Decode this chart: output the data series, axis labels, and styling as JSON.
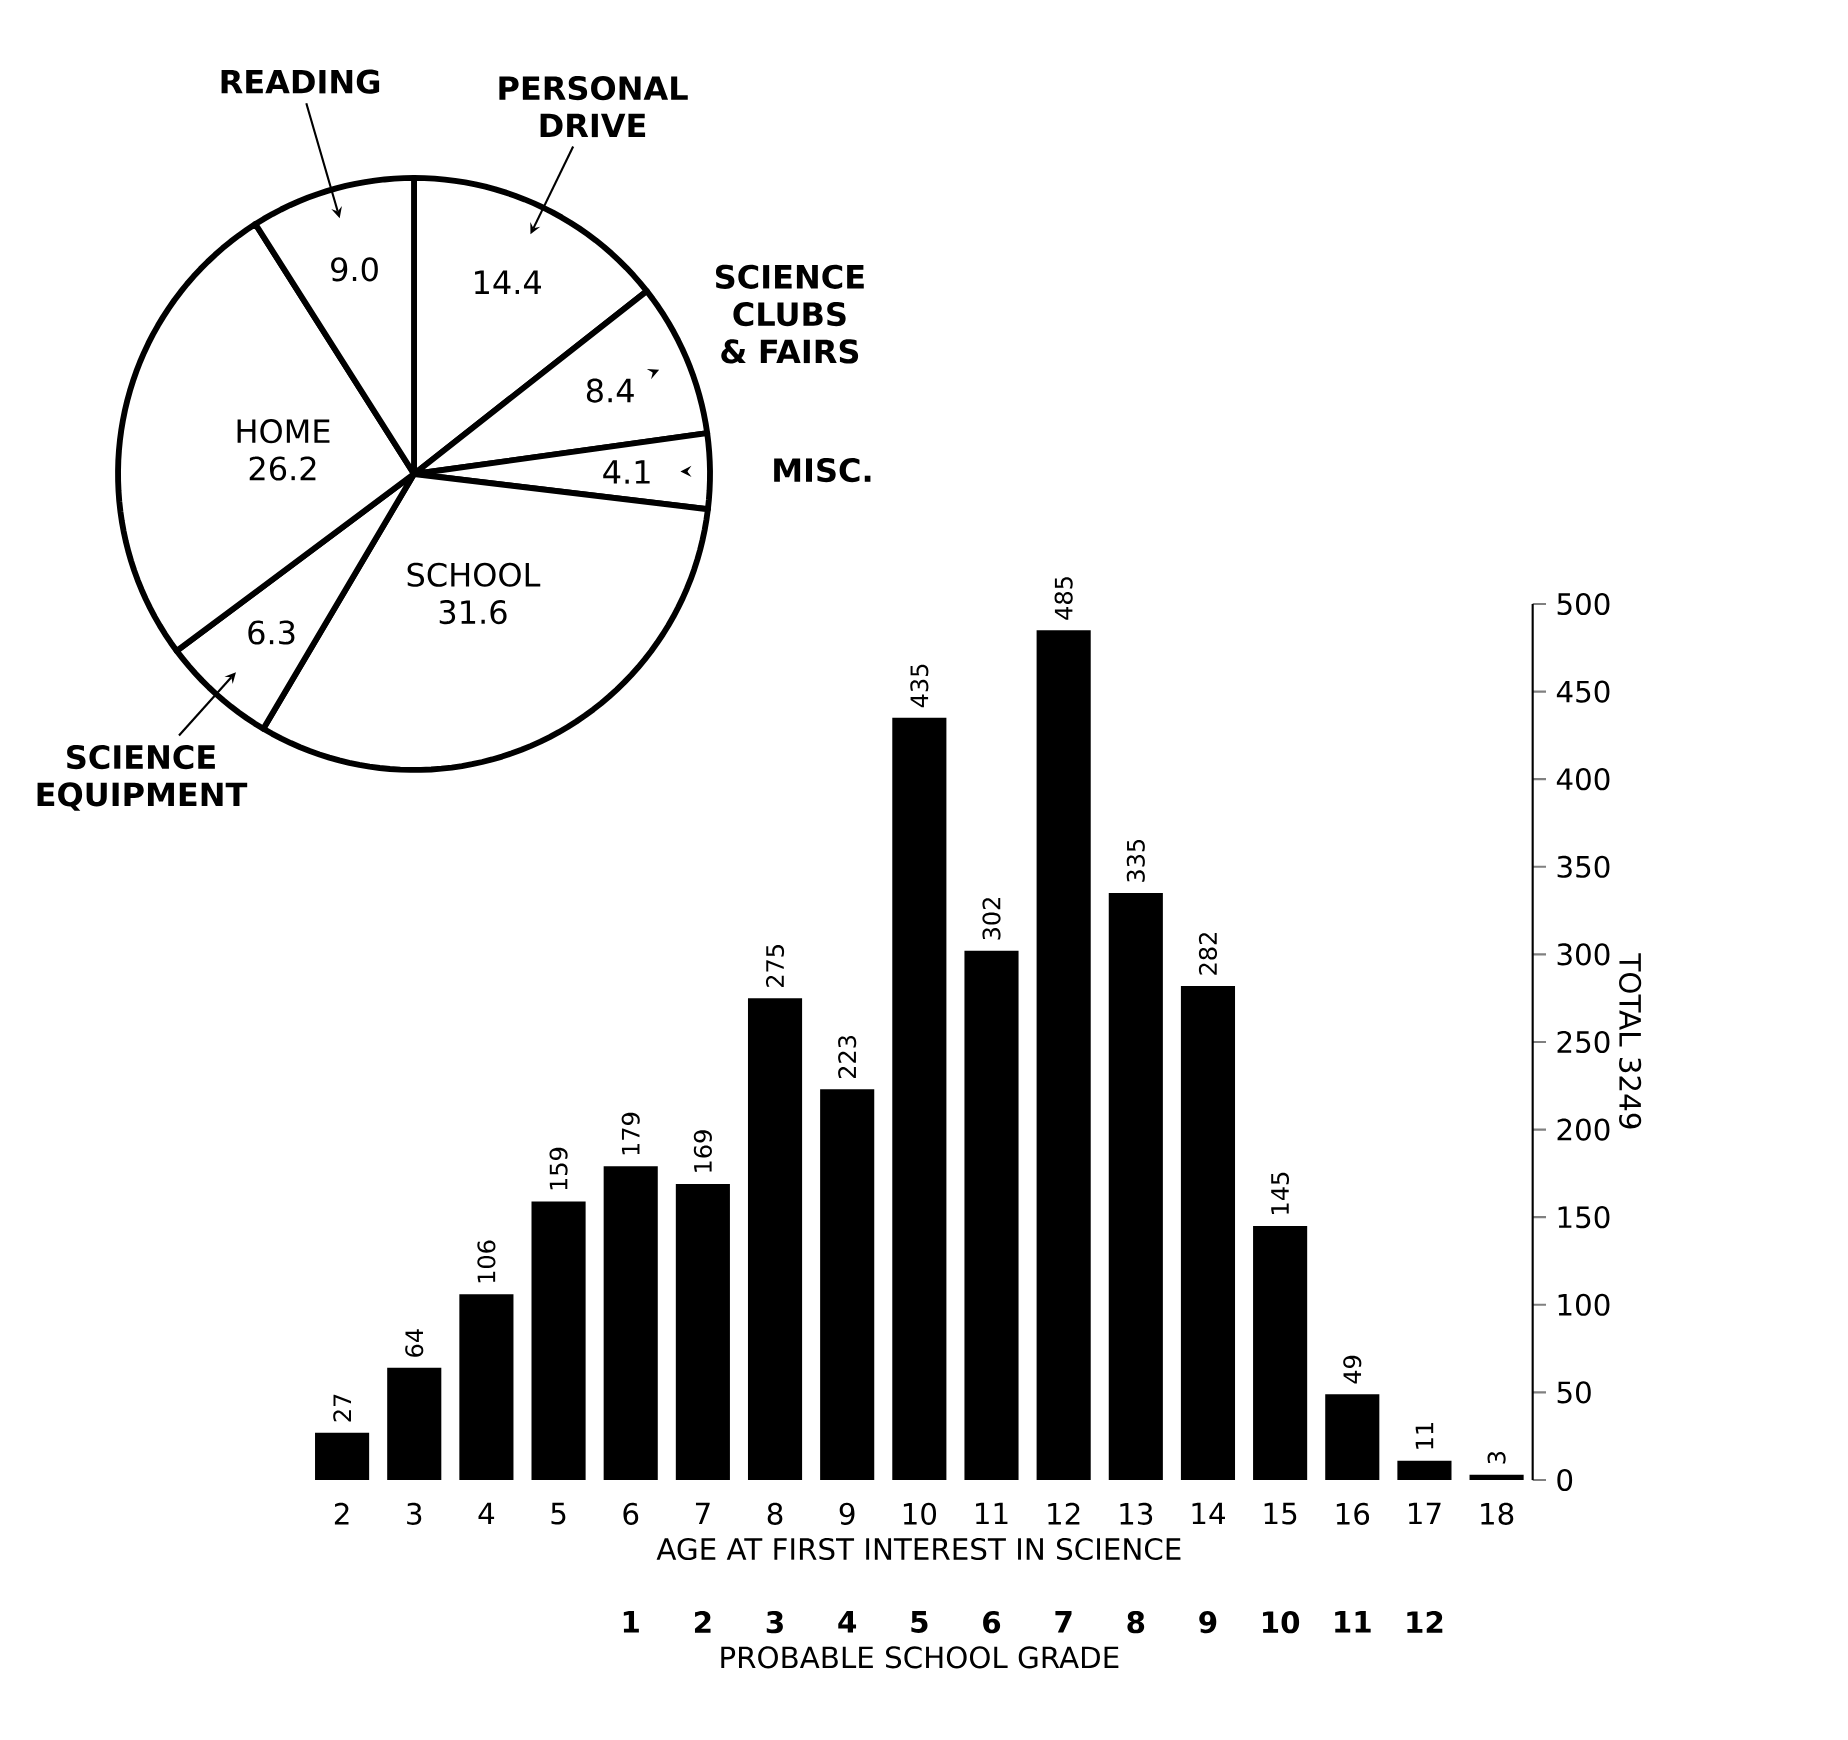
{
  "chart_data": [
    {
      "type": "bar",
      "categories": [
        "2",
        "3",
        "4",
        "5",
        "6",
        "7",
        "8",
        "9",
        "10",
        "11",
        "12",
        "13",
        "14",
        "15",
        "16",
        "17",
        "18"
      ],
      "values": [
        27,
        64,
        106,
        159,
        179,
        169,
        275,
        223,
        435,
        302,
        485,
        335,
        282,
        145,
        49,
        11,
        3
      ],
      "color": "#000000",
      "data_labels": true,
      "ylim": [
        0,
        500
      ],
      "yticks": [
        0,
        50,
        100,
        150,
        200,
        250,
        300,
        350,
        400,
        450,
        500
      ],
      "ylabel": "TOTAL 3249",
      "xlabel": "AGE AT FIRST INTEREST IN SCIENCE",
      "x2label": "PROBABLE SCHOOL GRADE",
      "x2lim": [
        -3.5,
        13.5
      ],
      "x2ticks": [
        1,
        2,
        3,
        4,
        5,
        6,
        7,
        8,
        9,
        10,
        11,
        12
      ]
    },
    {
      "type": "pie",
      "categories": [
        "PERSONAL DRIVE",
        "SCIENCE CLUBS & FAIRS",
        "MISC.",
        "SCHOOL",
        "SCIENCE EQUIPMENT",
        "HOME",
        "READING"
      ],
      "values": [
        14.4,
        8.4,
        4.1,
        31.6,
        6.3,
        26.2,
        9.0
      ],
      "value_labels": [
        "14.4",
        "8.4",
        "4.1",
        "31.6",
        "6.3",
        "26.2",
        "9.0"
      ],
      "colors": [
        "#ffffff",
        "#ffffff",
        "#ffffff",
        "#ffffff",
        "#ffffff",
        "#ffffff",
        "#ffffff"
      ]
    }
  ]
}
